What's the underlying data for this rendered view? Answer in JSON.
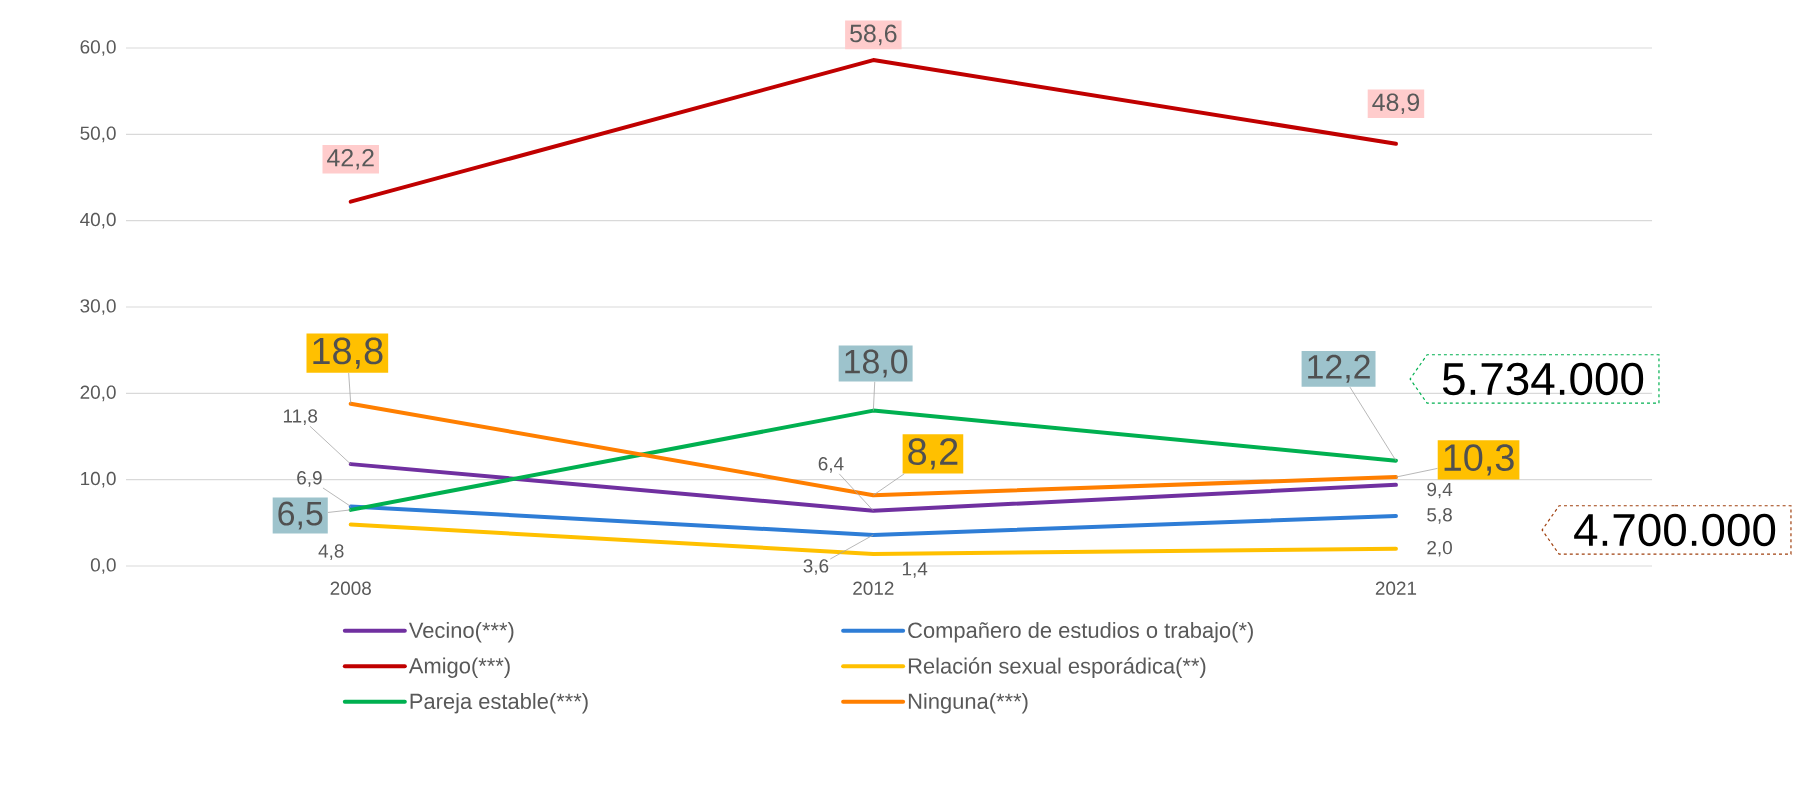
{
  "chart_data": {
    "type": "line",
    "categories": [
      "2008",
      "2012",
      "2021"
    ],
    "series": [
      {
        "name": "Vecino(***)",
        "color": "#7030a0",
        "values": [
          11.8,
          6.4,
          9.4
        ],
        "value_labels": [
          "11,8",
          "6,4",
          "9,4"
        ]
      },
      {
        "name": "Compañero de estudios o trabajo(*)",
        "color": "#2e7dd6",
        "values": [
          6.9,
          3.6,
          5.8
        ],
        "value_labels": [
          "6,9",
          "3,6",
          "5,8"
        ]
      },
      {
        "name": "Amigo(***)",
        "color": "#c00000",
        "values": [
          42.2,
          58.6,
          48.9
        ],
        "value_labels": [
          "42,2",
          "58,6",
          "48,9"
        ]
      },
      {
        "name": "Relación sexual esporádica(**)",
        "color": "#ffc000",
        "values": [
          4.8,
          1.4,
          2.0
        ],
        "value_labels": [
          "4,8",
          "1,4",
          "2,0"
        ]
      },
      {
        "name": "Pareja estable(***)",
        "color": "#00b050",
        "values": [
          6.5,
          18.0,
          12.2
        ],
        "value_labels": [
          "6,5",
          "18,0",
          "12,2"
        ]
      },
      {
        "name": "Ninguna(***)",
        "color": "#ff7f00",
        "values": [
          18.8,
          8.2,
          10.3
        ],
        "value_labels": [
          "18,8",
          "8,2",
          "10,3"
        ]
      }
    ],
    "ylim": [
      0,
      60
    ],
    "yticks": [
      {
        "value": 0,
        "label": "0,0"
      },
      {
        "value": 10,
        "label": "10,0"
      },
      {
        "value": 20,
        "label": "20,0"
      },
      {
        "value": 30,
        "label": "30,0"
      },
      {
        "value": 40,
        "label": "40,0"
      },
      {
        "value": 50,
        "label": "50,0"
      },
      {
        "value": 60,
        "label": "60,0"
      }
    ],
    "grid": "y",
    "legend": "bottom",
    "marker": "none",
    "line_style": "solid",
    "annotations": [
      "5.734.000",
      "4.700.000"
    ]
  }
}
